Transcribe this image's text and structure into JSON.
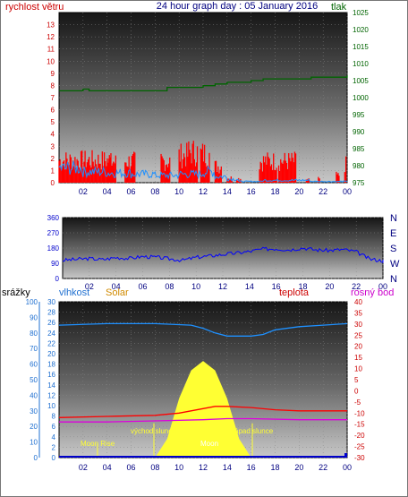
{
  "header": {
    "title": "24 hour graph day : 05 January 2016",
    "left_label": "rychlost větru",
    "right_label": "tlak"
  },
  "colors": {
    "wind": "#ff0000",
    "gust": "#1e90ff",
    "pressure": "#006400",
    "direction": "#0000ff",
    "humidity": "#1e90ff",
    "solar": "#ffff33",
    "temperature": "#ff0000",
    "dewpoint": "#dd00dd",
    "rain": "#0000cc",
    "grid": "#888888",
    "frame": "#000000"
  },
  "chart_data": [
    {
      "type": "line",
      "name": "wind-pressure",
      "x_ticks": [
        "02",
        "04",
        "06",
        "08",
        "10",
        "12",
        "14",
        "16",
        "18",
        "20",
        "22",
        "00"
      ],
      "y_left": {
        "label": "rychlost větru",
        "range": [
          0,
          14
        ],
        "ticks": [
          0,
          1,
          2,
          3,
          4,
          5,
          6,
          7,
          8,
          9,
          10,
          11,
          12,
          13
        ]
      },
      "y_right": {
        "label": "tlak",
        "range": [
          975,
          1025
        ],
        "ticks": [
          975,
          980,
          985,
          990,
          995,
          1000,
          1005,
          1010,
          1015,
          1020,
          1025
        ]
      },
      "pressure": {
        "x": [
          0,
          2,
          2.5,
          5,
          7,
          9,
          10,
          12,
          13,
          14,
          16,
          17,
          18,
          20,
          21,
          22,
          24
        ],
        "y": [
          1002,
          1002.5,
          1002,
          1002,
          1002,
          1003,
          1003,
          1003.5,
          1004,
          1004.5,
          1005,
          1005.5,
          1005.5,
          1005.5,
          1006,
          1006,
          1006.5
        ]
      },
      "wind_bursts": [
        [
          0,
          2,
          2.7
        ],
        [
          2,
          2.7,
          2.7
        ],
        [
          4,
          0.8,
          2.5
        ],
        [
          5.5,
          0.9,
          2.6
        ],
        [
          8.5,
          0.8,
          2.6
        ],
        [
          10,
          0.8,
          3.3
        ],
        [
          10.8,
          0.8,
          3.7
        ],
        [
          11.8,
          0.8,
          3.5
        ],
        [
          13,
          0.6,
          2
        ],
        [
          14,
          0.5,
          0.6
        ],
        [
          14.8,
          0.4,
          0.5
        ],
        [
          16.7,
          1.5,
          2.6
        ],
        [
          18.3,
          1.5,
          2.6
        ],
        [
          20.6,
          0.3,
          0.4
        ],
        [
          21.6,
          0.2,
          0.5
        ],
        [
          23.1,
          0.3,
          0.9
        ],
        [
          23.8,
          0.2,
          2.2
        ]
      ],
      "gust_levels": [
        [
          0,
          1.2
        ],
        [
          2,
          0.9
        ],
        [
          4,
          0.8
        ],
        [
          6,
          0.7
        ],
        [
          8,
          0.6
        ],
        [
          10,
          0.7
        ],
        [
          12,
          0.9
        ],
        [
          13,
          0.5
        ],
        [
          14,
          0.3
        ],
        [
          15,
          0.1
        ],
        [
          17,
          0.2
        ],
        [
          19,
          0.2
        ],
        [
          21,
          0.1
        ],
        [
          24,
          0.1
        ]
      ]
    },
    {
      "type": "line",
      "name": "wind-direction",
      "x_ticks": [
        "02",
        "04",
        "06",
        "08",
        "10",
        "12",
        "14",
        "16",
        "18",
        "20",
        "22",
        "00"
      ],
      "y_left": {
        "range": [
          0,
          360
        ],
        "ticks": [
          0,
          90,
          180,
          270,
          360
        ]
      },
      "y_right": {
        "labels": [
          "N",
          "W",
          "S",
          "E",
          "N"
        ]
      },
      "direction": {
        "x": [
          0,
          1,
          2,
          3,
          4,
          5,
          6,
          7,
          8,
          9,
          10,
          11,
          12,
          13,
          14,
          15,
          16,
          17,
          18,
          19,
          20,
          21,
          22,
          23,
          24
        ],
        "y": [
          108,
          113,
          118,
          112,
          124,
          119,
          130,
          126,
          116,
          108,
          125,
          133,
          142,
          150,
          160,
          174,
          176,
          170,
          181,
          169,
          166,
          172,
          158,
          115,
          105
        ]
      }
    },
    {
      "type": "line",
      "name": "temp-humidity-solar",
      "x_ticks": [
        "02",
        "04",
        "06",
        "08",
        "10",
        "12",
        "14",
        "16",
        "18",
        "20",
        "22",
        "00"
      ],
      "y_rain": {
        "label": "srážky",
        "range": [
          0,
          100
        ],
        "ticks": [
          0,
          10,
          20,
          30,
          40,
          50,
          60,
          70,
          80,
          90,
          100
        ]
      },
      "y_humidity": {
        "label": "vlhkost",
        "range": [
          0,
          30
        ],
        "ticks": [
          0,
          2,
          4,
          6,
          8,
          10,
          12,
          14,
          16,
          18,
          20,
          22,
          24,
          26,
          28,
          30
        ]
      },
      "y_temperature": {
        "label": "teplota",
        "range": [
          -30,
          40
        ],
        "ticks": [
          -30,
          -25,
          -20,
          -15,
          -10,
          -5,
          0,
          5,
          10,
          15,
          20,
          25,
          30,
          35,
          40
        ]
      },
      "labels": {
        "solar": "Solar",
        "dewpoint": "rosný bod",
        "moonrise": "Moon Rise",
        "sunrise": "východ slunce",
        "sunset": "západ slunce",
        "zenith": "Moon"
      },
      "humidity": {
        "x": [
          0,
          4,
          8,
          11,
          12,
          13,
          14,
          15,
          16,
          17,
          18,
          20,
          22,
          24
        ],
        "y": [
          85,
          86,
          86,
          85,
          83,
          80,
          78,
          78,
          78,
          79,
          82,
          84,
          85,
          86
        ]
      },
      "temperature": {
        "x": [
          0,
          4,
          8,
          10,
          12,
          13,
          14,
          16,
          18,
          20,
          24
        ],
        "y": [
          -12,
          -11.5,
          -11,
          -10,
          -8,
          -7,
          -7,
          -7.5,
          -8.5,
          -9,
          -9
        ]
      },
      "dewpoint": {
        "x": [
          0,
          4,
          8,
          12,
          14,
          16,
          20,
          24
        ],
        "y": [
          -14,
          -14,
          -13.5,
          -13,
          -12.5,
          -12.5,
          -13,
          -13
        ]
      },
      "solar": {
        "x": [
          8,
          9,
          10,
          11,
          12,
          13,
          14,
          15,
          16
        ],
        "y": [
          0,
          12,
          38,
          56,
          62,
          56,
          38,
          12,
          0
        ]
      },
      "sunrise_hour": 7.9,
      "sunset_hour": 16.1,
      "moonrise_hour": 3.2
    }
  ]
}
